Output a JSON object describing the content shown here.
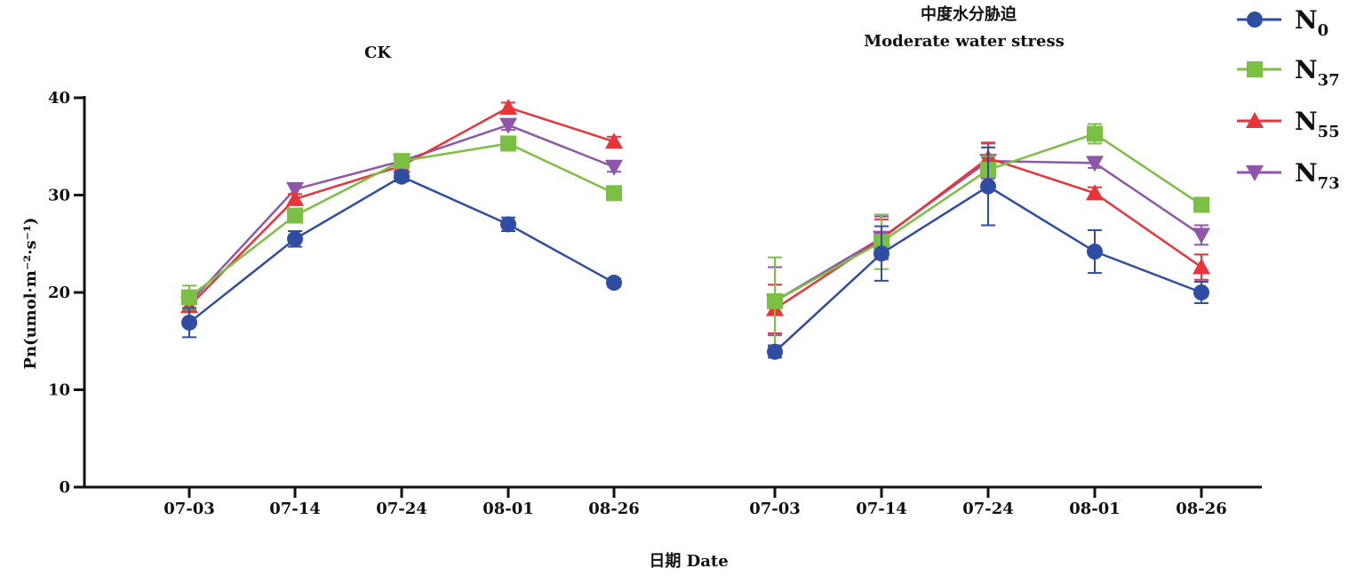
{
  "chart_data": {
    "type": "line",
    "ylabel": "Pn(umol·m⁻²·s⁻¹)",
    "xlabel": "日期 Date",
    "ylim": [
      0,
      40
    ],
    "yticks": [
      0,
      10,
      20,
      30,
      40
    ],
    "grid": false,
    "legend_position": "top-right",
    "colors": {
      "N0": "#2f4ea3",
      "N37": "#7cc043",
      "N55": "#e8343a",
      "N73": "#8e56ab"
    },
    "legend": [
      {
        "key": "N0",
        "base": "N",
        "sub": "0",
        "marker": "circle"
      },
      {
        "key": "N37",
        "base": "N",
        "sub": "37",
        "marker": "square"
      },
      {
        "key": "N55",
        "base": "N",
        "sub": "55",
        "marker": "triangle-up"
      },
      {
        "key": "N73",
        "base": "N",
        "sub": "73",
        "marker": "triangle-down"
      }
    ],
    "panels": [
      {
        "title": [
          "CK"
        ],
        "categories": [
          "07-03",
          "07-14",
          "07-24",
          "08-01",
          "08-26"
        ],
        "series": [
          {
            "key": "N0",
            "values": [
              16.9,
              25.5,
              31.9,
              27.0,
              21.0
            ],
            "errors": [
              1.5,
              0.8,
              0.5,
              0.7,
              0.4
            ]
          },
          {
            "key": "N37",
            "values": [
              19.5,
              27.9,
              33.5,
              35.3,
              30.2
            ],
            "errors": [
              1.2,
              0.6,
              0.5,
              0.5,
              0.5
            ]
          },
          {
            "key": "N55",
            "values": [
              18.6,
              29.6,
              33.0,
              39.0,
              35.5
            ],
            "errors": [
              0.5,
              0.5,
              0.5,
              0.5,
              0.5
            ]
          },
          {
            "key": "N73",
            "values": [
              18.9,
              30.6,
              33.5,
              37.2,
              32.9
            ],
            "errors": [
              0.5,
              0.5,
              0.5,
              0.5,
              0.5
            ]
          }
        ]
      },
      {
        "title": [
          "中度水分胁迫",
          "Moderate water stress"
        ],
        "categories": [
          "07-03",
          "07-14",
          "07-24",
          "08-01",
          "08-26"
        ],
        "series": [
          {
            "key": "N0",
            "values": [
              13.9,
              24.0,
              30.9,
              24.2,
              20.0
            ],
            "errors": [
              0.6,
              2.8,
              4.0,
              2.2,
              1.1
            ]
          },
          {
            "key": "N37",
            "values": [
              19.1,
              25.2,
              32.6,
              36.3,
              29.0
            ],
            "errors": [
              4.5,
              2.8,
              1.4,
              1.0,
              0.5
            ]
          },
          {
            "key": "N55",
            "values": [
              18.3,
              25.5,
              33.8,
              30.2,
              22.6
            ],
            "errors": [
              2.5,
              2.0,
              1.6,
              0.6,
              1.3
            ]
          },
          {
            "key": "N73",
            "values": [
              19.1,
              25.6,
              33.5,
              33.3,
              25.9
            ],
            "errors": [
              3.5,
              2.2,
              1.8,
              0.5,
              1.0
            ]
          }
        ]
      }
    ]
  }
}
